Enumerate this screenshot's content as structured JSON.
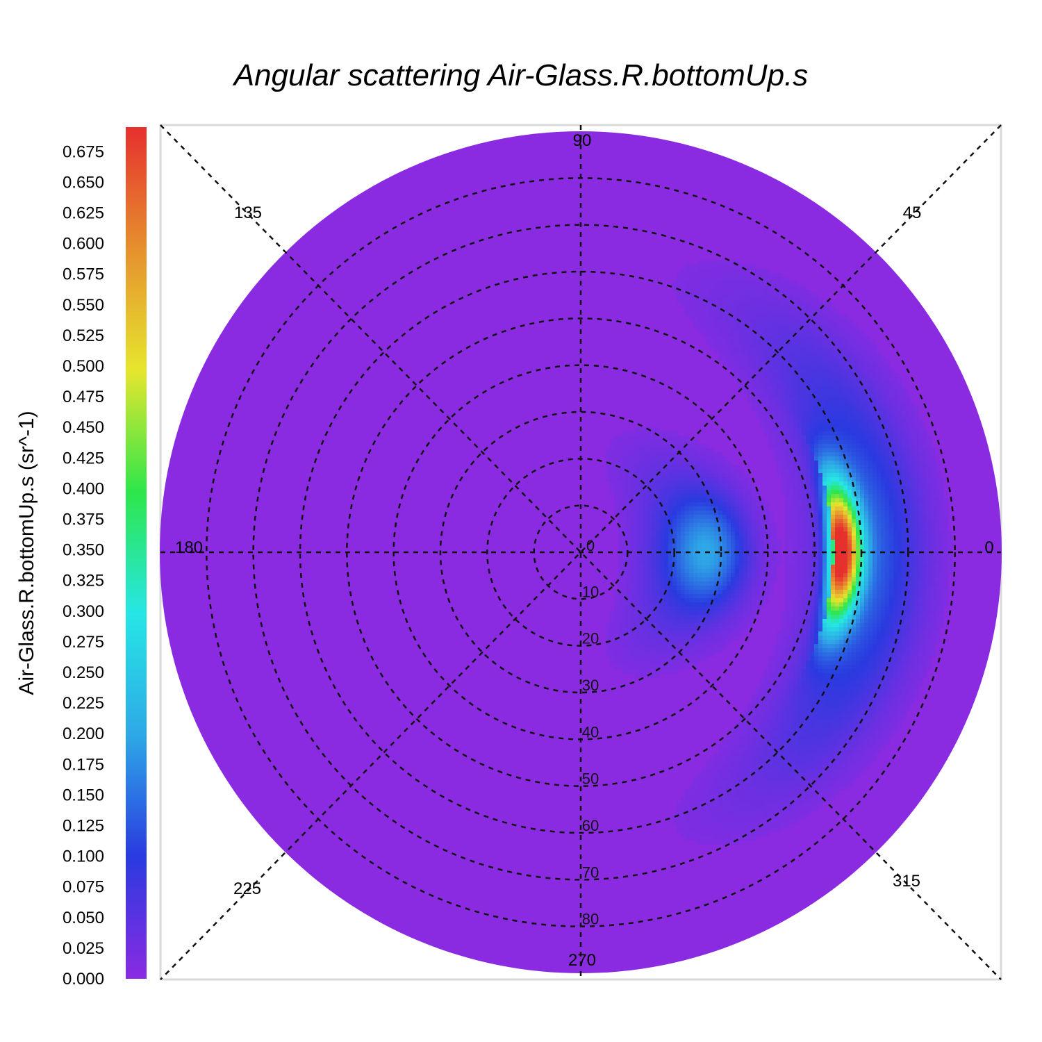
{
  "chart_data": {
    "type": "heatmap",
    "subtype": "polar",
    "title": "Angular scattering Air-Glass.R.bottomUp.s",
    "colorbar_label": "Air-Glass.R.bottomUp.s (sr^-1)",
    "colorbar_ticks": [
      "0.000",
      "0.025",
      "0.050",
      "0.075",
      "0.100",
      "0.125",
      "0.150",
      "0.175",
      "0.200",
      "0.225",
      "0.250",
      "0.275",
      "0.300",
      "0.325",
      "0.350",
      "0.375",
      "0.400",
      "0.425",
      "0.450",
      "0.475",
      "0.500",
      "0.525",
      "0.550",
      "0.575",
      "0.600",
      "0.625",
      "0.650",
      "0.675"
    ],
    "colorbar_range": [
      0,
      0.695
    ],
    "colormap": [
      "#8a2be2",
      "#2a3ae0",
      "#2ea8e6",
      "#26e6e6",
      "#2ee64a",
      "#e6e62e",
      "#e6902e",
      "#e6302e"
    ],
    "angular_labels": [
      "0",
      "45",
      "90",
      "135",
      "180",
      "225",
      "270",
      "315"
    ],
    "radial_labels": [
      "0",
      "10",
      "20",
      "30",
      "40",
      "50",
      "60",
      "70",
      "80"
    ],
    "radial_range": [
      0,
      90
    ],
    "grid": true,
    "peak": {
      "azimuth_deg": 0,
      "polar_deg": 56,
      "value": 0.69
    },
    "background_value": 0.0
  }
}
